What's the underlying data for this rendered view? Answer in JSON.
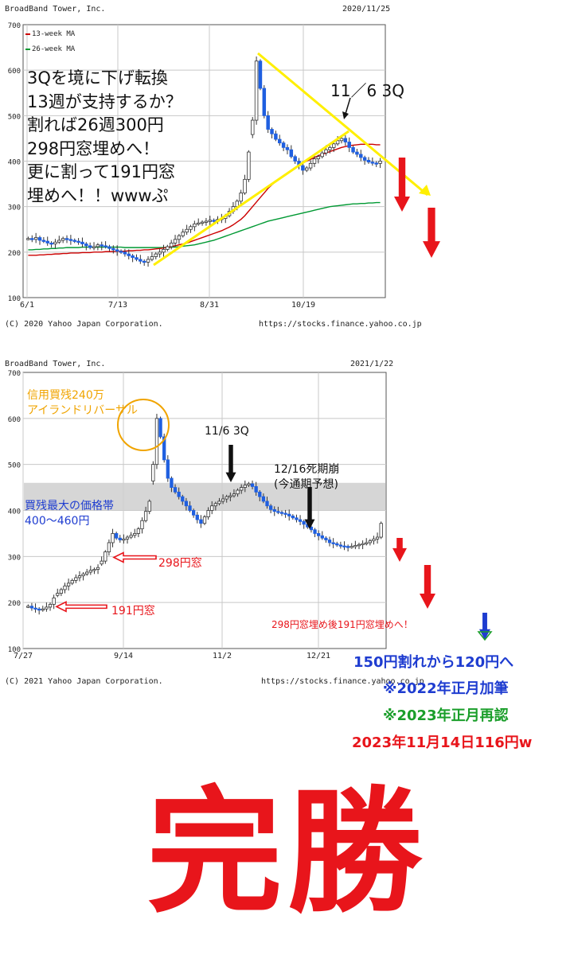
{
  "chart_data": [
    {
      "type": "candlestick",
      "title": "BroadBand Tower, Inc.",
      "date": "2020/11/25",
      "copyright": "(C) 2020 Yahoo Japan Corporation.",
      "source": "https://stocks.finance.yahoo.co.jp",
      "ylim": [
        100,
        700
      ],
      "yticks": [
        100,
        200,
        300,
        400,
        500,
        600,
        700
      ],
      "xticks": [
        "6/1",
        "7/13",
        "8/31",
        "10/19"
      ],
      "legend": [
        "13-week MA",
        "26-week MA"
      ],
      "grid": true,
      "series": {
        "close": [
          230,
          228,
          232,
          226,
          224,
          220,
          218,
          222,
          226,
          230,
          228,
          226,
          224,
          222,
          218,
          214,
          210,
          212,
          216,
          214,
          212,
          208,
          205,
          202,
          200,
          196,
          192,
          188,
          184,
          180,
          178,
          184,
          190,
          196,
          200,
          206,
          212,
          220,
          228,
          236,
          244,
          250,
          256,
          262,
          264,
          266,
          268,
          270,
          268,
          272,
          274,
          280,
          290,
          300,
          312,
          330,
          360,
          420,
          490,
          620,
          560,
          500,
          470,
          460,
          448,
          440,
          430,
          425,
          410,
          400,
          390,
          380,
          385,
          395,
          405,
          410,
          418,
          425,
          430,
          438,
          445,
          450,
          442,
          430,
          420,
          415,
          408,
          402,
          398,
          396,
          395,
          400
        ],
        "ma13": [
          193,
          193,
          193,
          194,
          194,
          195,
          195,
          196,
          196,
          197,
          197,
          198,
          198,
          198,
          199,
          199,
          199,
          200,
          200,
          200,
          201,
          201,
          201,
          202,
          202,
          202,
          203,
          203,
          204,
          204,
          205,
          205,
          206,
          207,
          208,
          209,
          210,
          212,
          214,
          216,
          218,
          220,
          223,
          226,
          229,
          232,
          235,
          238,
          241,
          244,
          247,
          251,
          255,
          260,
          266,
          272,
          280,
          290,
          300,
          310,
          320,
          330,
          340,
          348,
          355,
          362,
          368,
          374,
          380,
          386,
          391,
          396,
          400,
          404,
          408,
          412,
          415,
          418,
          421,
          424,
          427,
          430,
          432,
          434,
          435,
          436,
          437,
          437,
          437,
          437,
          436,
          436
        ],
        "ma26": [
          205,
          205,
          206,
          206,
          207,
          207,
          208,
          208,
          209,
          209,
          210,
          210,
          210,
          210,
          211,
          211,
          211,
          211,
          211,
          211,
          211,
          211,
          211,
          211,
          211,
          210,
          210,
          210,
          210,
          210,
          210,
          210,
          210,
          210,
          210,
          210,
          210,
          211,
          211,
          212,
          213,
          214,
          215,
          216,
          218,
          220,
          222,
          224,
          226,
          229,
          232,
          235,
          238,
          241,
          244,
          247,
          250,
          253,
          256,
          259,
          262,
          265,
          268,
          270,
          272,
          274,
          276,
          278,
          280,
          282,
          284,
          286,
          288,
          290,
          292,
          294,
          296,
          298,
          300,
          301,
          302,
          303,
          304,
          305,
          306,
          306,
          307,
          307,
          308,
          308,
          309,
          309
        ]
      }
    },
    {
      "type": "candlestick",
      "title": "BroadBand Tower, Inc.",
      "date": "2021/1/22",
      "copyright": "(C) 2021 Yahoo Japan Corporation.",
      "source": "https://stocks.finance.yahoo.co.jp",
      "ylim": [
        100,
        700
      ],
      "yticks": [
        100,
        200,
        300,
        400,
        500,
        600,
        700
      ],
      "xticks": [
        "7/27",
        "9/14",
        "11/2",
        "12/21"
      ],
      "grid": true,
      "band": [
        400,
        460
      ],
      "series": {
        "close": [
          192,
          188,
          186,
          184,
          186,
          190,
          196,
          210,
          220,
          228,
          236,
          242,
          248,
          254,
          258,
          262,
          266,
          270,
          272,
          276,
          290,
          310,
          330,
          350,
          340,
          336,
          338,
          342,
          346,
          350,
          360,
          378,
          398,
          420,
          500,
          600,
          560,
          510,
          470,
          450,
          440,
          430,
          420,
          410,
          400,
          390,
          380,
          372,
          386,
          400,
          410,
          415,
          420,
          425,
          430,
          432,
          436,
          444,
          450,
          455,
          458,
          452,
          440,
          430,
          420,
          410,
          402,
          398,
          396,
          394,
          392,
          388,
          384,
          380,
          376,
          370,
          364,
          358,
          350,
          345,
          340,
          336,
          330,
          328,
          325,
          323,
          322,
          321,
          322,
          324,
          326,
          328,
          330,
          334,
          338,
          342,
          372
        ],
        "gaps": [
          298,
          191
        ]
      }
    }
  ],
  "chart1_annotations": {
    "main_text": [
      "3Qを境に下げ転換",
      "13週が支持するか？",
      "割れば26週300円",
      "298円窓埋めへ！",
      "更に割って191円窓",
      "埋めへ！！wwwぷ"
    ],
    "q3_label": "11／6 3Q"
  },
  "chart2_annotations": {
    "island_line1": "信用買残240万",
    "island_line2": "アイランドリバーサル",
    "q3_label": "11/6 3Q",
    "collapse_line1": "12/16死期崩",
    "collapse_line2": "(今通期予想)",
    "band_line1": "買残最大の価格帯",
    "band_line2": "400～460円",
    "gap298": "298円窓",
    "gap191": "191円窓",
    "gap_fill_note": "298円窓埋め後191円窓埋めへ！"
  },
  "notes": {
    "line1": "150円割れから120円へ",
    "line2": "※2022年正月加筆",
    "line3": "※2023年正月再認",
    "line4": "2023年11月14日116円w"
  },
  "verdict": "完勝",
  "colors": {
    "yellow_line": "#ffef00",
    "ma13": "#cc0000",
    "ma26": "#009933",
    "candle_blue": "#1f5fe0",
    "arrow_red": "#e8151b",
    "note_blue": "#1e3cd0",
    "note_green": "#1a9e2a",
    "note_red": "#e8151b",
    "annot_orange": "#f0a400",
    "band_grey": "#cfcfcf"
  }
}
